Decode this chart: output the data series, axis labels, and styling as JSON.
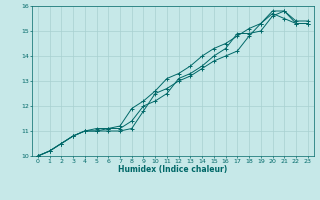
{
  "xlabel": "Humidex (Indice chaleur)",
  "ylabel": "",
  "background_color": "#c6e8e8",
  "grid_color": "#a8d0d0",
  "line_color": "#006868",
  "xlim": [
    -0.5,
    23.5
  ],
  "ylim": [
    10,
    16
  ],
  "xticks": [
    0,
    1,
    2,
    3,
    4,
    5,
    6,
    7,
    8,
    9,
    10,
    11,
    12,
    13,
    14,
    15,
    16,
    17,
    18,
    19,
    20,
    21,
    22,
    23
  ],
  "yticks": [
    10,
    11,
    12,
    13,
    14,
    15,
    16
  ],
  "series": [
    {
      "x": [
        0,
        1,
        2,
        3,
        4,
        5,
        6,
        7,
        8,
        9,
        10,
        11,
        12,
        13,
        14,
        15,
        16,
        17,
        18,
        19,
        20,
        21,
        22,
        23
      ],
      "y": [
        10.0,
        10.2,
        10.5,
        10.8,
        11.0,
        11.0,
        11.0,
        11.0,
        11.1,
        11.8,
        12.5,
        12.7,
        13.0,
        13.2,
        13.5,
        13.8,
        14.0,
        14.2,
        14.8,
        15.3,
        15.7,
        15.5,
        15.3,
        15.3
      ]
    },
    {
      "x": [
        0,
        1,
        2,
        3,
        4,
        5,
        6,
        7,
        8,
        9,
        10,
        11,
        12,
        13,
        14,
        15,
        16,
        17,
        18,
        19,
        20,
        21,
        22,
        23
      ],
      "y": [
        10.0,
        10.2,
        10.5,
        10.8,
        11.0,
        11.0,
        11.1,
        11.1,
        11.4,
        12.0,
        12.2,
        12.5,
        13.1,
        13.3,
        13.6,
        14.0,
        14.3,
        14.9,
        14.9,
        15.0,
        15.6,
        15.8,
        15.3,
        15.3
      ]
    },
    {
      "x": [
        0,
        1,
        2,
        3,
        4,
        5,
        6,
        7,
        8,
        9,
        10,
        11,
        12,
        13,
        14,
        15,
        16,
        17,
        18,
        19,
        20,
        21,
        22,
        23
      ],
      "y": [
        10.0,
        10.2,
        10.5,
        10.8,
        11.0,
        11.1,
        11.1,
        11.2,
        11.9,
        12.2,
        12.6,
        13.1,
        13.3,
        13.6,
        14.0,
        14.3,
        14.5,
        14.8,
        15.1,
        15.3,
        15.8,
        15.8,
        15.4,
        15.4
      ]
    }
  ],
  "figsize": [
    3.2,
    2.0
  ],
  "dpi": 100,
  "tick_labelsize": 4.5,
  "xlabel_fontsize": 5.5,
  "linewidth": 0.7,
  "markersize": 2.5,
  "markeredgewidth": 0.7
}
